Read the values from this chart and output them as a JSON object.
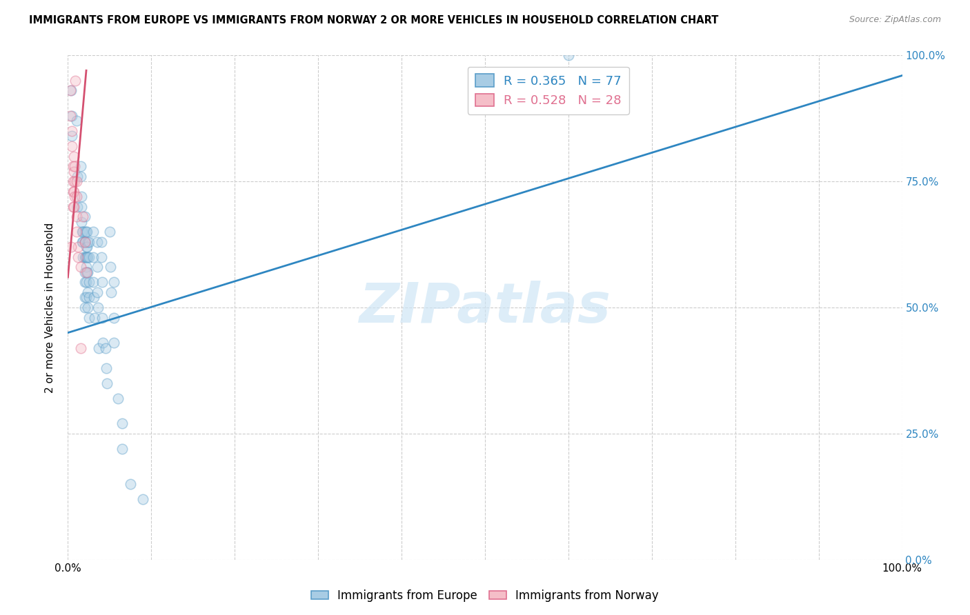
{
  "title": "IMMIGRANTS FROM EUROPE VS IMMIGRANTS FROM NORWAY 2 OR MORE VEHICLES IN HOUSEHOLD CORRELATION CHART",
  "source": "Source: ZipAtlas.com",
  "ylabel": "2 or more Vehicles in Household",
  "watermark": "ZIPatlas",
  "blue_color": "#a8cce4",
  "pink_color": "#f5bec8",
  "blue_edge_color": "#5b9ec9",
  "pink_edge_color": "#e07090",
  "blue_line_color": "#2e86c1",
  "pink_line_color": "#d45070",
  "blue_points": [
    [
      0.4,
      0.93
    ],
    [
      0.5,
      0.88
    ],
    [
      0.5,
      0.84
    ],
    [
      1.0,
      0.87
    ],
    [
      1.1,
      0.76
    ],
    [
      1.1,
      0.7
    ],
    [
      1.5,
      0.78
    ],
    [
      1.5,
      0.76
    ],
    [
      1.6,
      0.72
    ],
    [
      1.6,
      0.7
    ],
    [
      1.6,
      0.67
    ],
    [
      1.7,
      0.65
    ],
    [
      1.7,
      0.63
    ],
    [
      1.8,
      0.65
    ],
    [
      1.8,
      0.63
    ],
    [
      1.8,
      0.6
    ],
    [
      2.0,
      0.68
    ],
    [
      2.0,
      0.65
    ],
    [
      2.0,
      0.63
    ],
    [
      2.0,
      0.6
    ],
    [
      2.0,
      0.57
    ],
    [
      2.0,
      0.55
    ],
    [
      2.0,
      0.52
    ],
    [
      2.0,
      0.5
    ],
    [
      2.1,
      0.63
    ],
    [
      2.1,
      0.6
    ],
    [
      2.2,
      0.65
    ],
    [
      2.2,
      0.62
    ],
    [
      2.2,
      0.6
    ],
    [
      2.2,
      0.58
    ],
    [
      2.2,
      0.55
    ],
    [
      2.2,
      0.52
    ],
    [
      2.3,
      0.65
    ],
    [
      2.3,
      0.62
    ],
    [
      2.3,
      0.6
    ],
    [
      2.3,
      0.57
    ],
    [
      2.4,
      0.63
    ],
    [
      2.4,
      0.6
    ],
    [
      2.4,
      0.57
    ],
    [
      2.4,
      0.53
    ],
    [
      2.4,
      0.5
    ],
    [
      2.5,
      0.63
    ],
    [
      2.5,
      0.6
    ],
    [
      2.5,
      0.55
    ],
    [
      2.5,
      0.52
    ],
    [
      2.5,
      0.48
    ],
    [
      3.0,
      0.65
    ],
    [
      3.0,
      0.6
    ],
    [
      3.0,
      0.55
    ],
    [
      3.1,
      0.52
    ],
    [
      3.2,
      0.48
    ],
    [
      3.5,
      0.63
    ],
    [
      3.5,
      0.58
    ],
    [
      3.5,
      0.53
    ],
    [
      3.6,
      0.5
    ],
    [
      3.7,
      0.42
    ],
    [
      4.0,
      0.63
    ],
    [
      4.0,
      0.6
    ],
    [
      4.1,
      0.55
    ],
    [
      4.1,
      0.48
    ],
    [
      4.2,
      0.43
    ],
    [
      4.5,
      0.42
    ],
    [
      4.6,
      0.38
    ],
    [
      4.7,
      0.35
    ],
    [
      5.0,
      0.65
    ],
    [
      5.1,
      0.58
    ],
    [
      5.2,
      0.53
    ],
    [
      5.5,
      0.55
    ],
    [
      5.5,
      0.48
    ],
    [
      5.5,
      0.43
    ],
    [
      6.0,
      0.32
    ],
    [
      6.5,
      0.27
    ],
    [
      6.5,
      0.22
    ],
    [
      7.5,
      0.15
    ],
    [
      9.0,
      0.12
    ],
    [
      60.0,
      1.0
    ]
  ],
  "pink_points": [
    [
      0.3,
      0.93
    ],
    [
      0.3,
      0.88
    ],
    [
      0.5,
      0.85
    ],
    [
      0.5,
      0.82
    ],
    [
      0.6,
      0.78
    ],
    [
      0.6,
      0.75
    ],
    [
      0.6,
      0.73
    ],
    [
      0.6,
      0.7
    ],
    [
      0.7,
      0.8
    ],
    [
      0.7,
      0.77
    ],
    [
      0.7,
      0.73
    ],
    [
      0.7,
      0.7
    ],
    [
      0.8,
      0.78
    ],
    [
      0.8,
      0.75
    ],
    [
      0.8,
      0.72
    ],
    [
      1.0,
      0.75
    ],
    [
      1.0,
      0.72
    ],
    [
      1.0,
      0.68
    ],
    [
      1.0,
      0.65
    ],
    [
      1.2,
      0.62
    ],
    [
      1.2,
      0.6
    ],
    [
      1.5,
      0.58
    ],
    [
      1.5,
      0.42
    ],
    [
      1.8,
      0.68
    ],
    [
      2.0,
      0.63
    ],
    [
      2.2,
      0.57
    ],
    [
      0.4,
      0.62
    ],
    [
      0.9,
      0.95
    ]
  ],
  "blue_line_x": [
    0.0,
    100.0
  ],
  "blue_line_y": [
    0.45,
    0.96
  ],
  "pink_line_x": [
    0.0,
    2.2
  ],
  "pink_line_y": [
    0.56,
    0.97
  ],
  "xlim": [
    0,
    100.0
  ],
  "ylim": [
    0,
    1.0
  ],
  "xtick_positions": [
    0,
    10,
    20,
    30,
    40,
    50,
    60,
    70,
    80,
    90,
    100
  ],
  "ytick_positions": [
    0.0,
    0.25,
    0.5,
    0.75,
    1.0
  ],
  "ytick_labels_left": [
    "",
    "",
    "",
    "",
    ""
  ],
  "ytick_labels_right": [
    "0.0%",
    "25.0%",
    "50.0%",
    "75.0%",
    "100.0%"
  ],
  "grid_color": "#cccccc",
  "background_color": "#ffffff",
  "scatter_size": 110,
  "scatter_alpha": 0.42,
  "scatter_linewidth": 1.1
}
